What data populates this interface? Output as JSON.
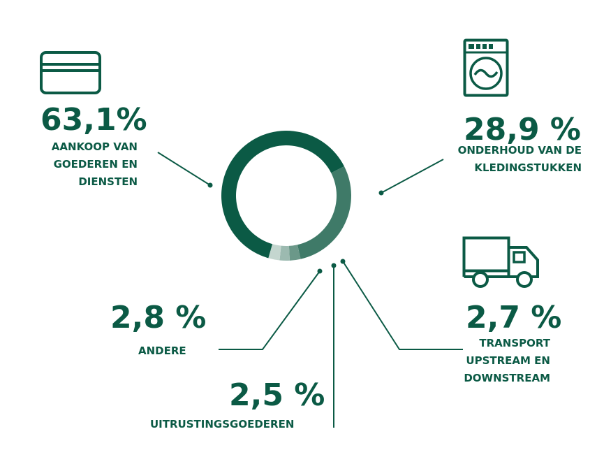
{
  "chart_data": {
    "type": "donut",
    "unit": "%",
    "segments": [
      {
        "value": 63.1,
        "display": "63,1%",
        "label_lines": [
          "AANKOOP VAN",
          "GOEDEREN EN",
          "DIENSTEN"
        ],
        "icon": "credit-card-icon",
        "color": "#0b5a45"
      },
      {
        "value": 28.9,
        "display": "28,9 %",
        "label_lines": [
          "ONDERHOUD VAN DE",
          "KLEDINGSTUKKEN"
        ],
        "icon": "washing-machine-icon",
        "color": "#3f7a68"
      },
      {
        "value": 2.7,
        "display": "2,7 %",
        "label_lines": [
          "TRANSPORT",
          "UPSTREAM EN",
          "DOWNSTREAM"
        ],
        "icon": "truck-icon",
        "color": "#6b9889"
      },
      {
        "value": 2.5,
        "display": "2,5 %",
        "label_lines": [
          "UITRUSTINGSGOEDEREN"
        ],
        "icon": "",
        "color": "#9cbab0"
      },
      {
        "value": 2.8,
        "display": "2,8 %",
        "label_lines": [
          "ANDERE"
        ],
        "icon": "",
        "color": "#c4d6cf"
      }
    ]
  }
}
